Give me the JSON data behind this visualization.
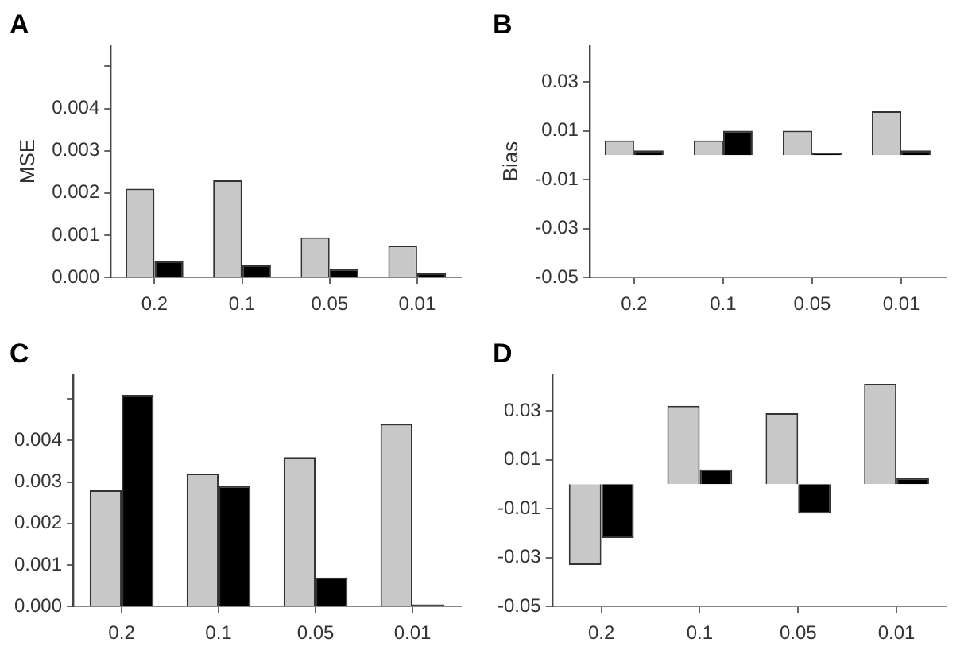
{
  "chart_data": [
    {
      "type": "bar",
      "title": "A",
      "ylabel": "MSE",
      "categories": [
        "0.2",
        "0.1",
        "0.05",
        "0.01"
      ],
      "series": [
        {
          "color": "#c8c8c8",
          "values": [
            0.0021,
            0.0023,
            0.00095,
            0.00075
          ]
        },
        {
          "color": "#000000",
          "values": [
            0.00038,
            0.0003,
            0.0002,
            0.0001
          ]
        }
      ],
      "ylim": [
        0,
        0.0055
      ],
      "yticks": [
        {
          "value": 0,
          "label": "0.000"
        },
        {
          "value": 0.001,
          "label": "0.001"
        },
        {
          "value": 0.002,
          "label": "0.002"
        },
        {
          "value": 0.003,
          "label": "0.003"
        },
        {
          "value": 0.004,
          "label": "0.004"
        },
        {
          "value": 0.005,
          "label": null
        }
      ]
    },
    {
      "type": "bar",
      "title": "B",
      "ylabel": "Bias",
      "categories": [
        "0.2",
        "0.1",
        "0.05",
        "0.01"
      ],
      "series": [
        {
          "color": "#c8c8c8",
          "values": [
            0.006,
            0.006,
            0.01,
            0.018
          ]
        },
        {
          "color": "#000000",
          "values": [
            0.002,
            0.01,
            0.001,
            0.002
          ]
        }
      ],
      "ylim": [
        -0.05,
        0.045
      ],
      "yticks": [
        -0.05,
        -0.03,
        -0.01,
        0.01,
        0.03
      ]
    },
    {
      "type": "bar",
      "title": "C",
      "categories": [
        "0.2",
        "0.1",
        "0.05",
        "0.01"
      ],
      "series": [
        {
          "color": "#c8c8c8",
          "values": [
            0.0028,
            0.0032,
            0.0036,
            0.0044
          ]
        },
        {
          "color": "#000000",
          "values": [
            0.0051,
            0.0029,
            0.0007,
            5e-05
          ]
        }
      ],
      "ylim": [
        0,
        0.0056
      ],
      "yticks": [
        {
          "value": 0,
          "label": "0.000"
        },
        {
          "value": 0.001,
          "label": "0.001"
        },
        {
          "value": 0.002,
          "label": "0.002"
        },
        {
          "value": 0.003,
          "label": "0.003"
        },
        {
          "value": 0.004,
          "label": "0.004"
        },
        {
          "value": 0.005,
          "label": null
        }
      ]
    },
    {
      "type": "bar",
      "title": "D",
      "categories": [
        "0.2",
        "0.1",
        "0.05",
        "0.01"
      ],
      "series": [
        {
          "color": "#c8c8c8",
          "values": [
            -0.033,
            0.032,
            0.029,
            0.041
          ]
        },
        {
          "color": "#000000",
          "values": [
            -0.022,
            0.006,
            -0.012,
            0.0025
          ]
        }
      ],
      "ylim": [
        -0.05,
        0.045
      ],
      "yticks": [
        -0.05,
        -0.03,
        -0.01,
        0.01,
        0.03
      ]
    }
  ]
}
